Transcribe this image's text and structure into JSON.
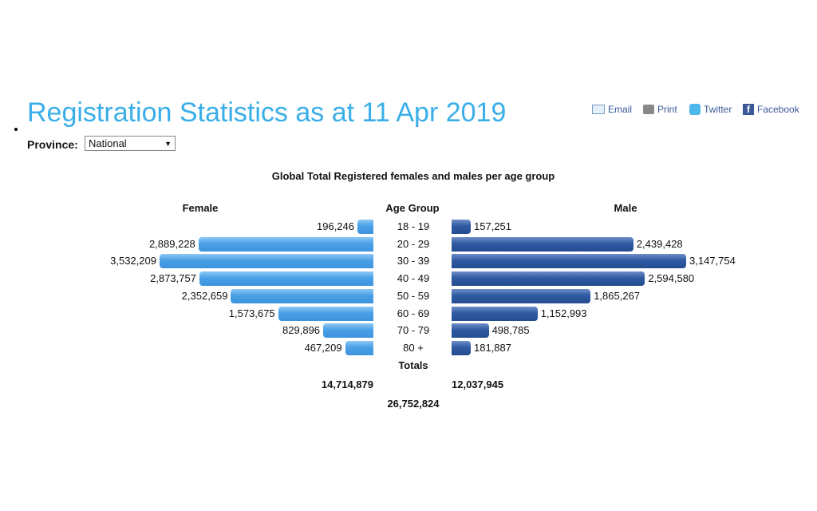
{
  "header": {
    "title": "Registration Statistics as at 11 Apr 2019",
    "province_label": "Province:",
    "province_value": "National"
  },
  "share": [
    {
      "label": "Email",
      "icon": "email-icon"
    },
    {
      "label": "Print",
      "icon": "print-icon"
    },
    {
      "label": "Twitter",
      "icon": "twitter-icon"
    },
    {
      "label": "Facebook",
      "icon": "facebook-icon"
    }
  ],
  "colors": {
    "title": "#3aaee8",
    "female": "#4aa0e6",
    "male": "#2f5aa2"
  },
  "chart_data": {
    "type": "bar",
    "title": "Global Total Registered females and males per age group",
    "left_header": "Female",
    "center_header": "Age Group",
    "right_header": "Male",
    "categories": [
      "18 - 19",
      "20 - 29",
      "30 - 39",
      "40 - 49",
      "50 - 59",
      "60 - 69",
      "70 - 79",
      "80 +"
    ],
    "series": [
      {
        "name": "Female",
        "values": [
          196246,
          2889228,
          3532209,
          2873757,
          2352659,
          1573675,
          829896,
          467209
        ],
        "labels": [
          "196,246",
          "2,889,228",
          "3,532,209",
          "2,873,757",
          "2,352,659",
          "1,573,675",
          "829,896",
          "467,209"
        ]
      },
      {
        "name": "Male",
        "values": [
          157251,
          2439428,
          3147754,
          2594580,
          1865267,
          1152993,
          498785,
          181887
        ],
        "labels": [
          "157,251",
          "2,439,428",
          "3,147,754",
          "2,594,580",
          "1,865,267",
          "1,152,993",
          "498,785",
          "181,887"
        ]
      }
    ],
    "totals_label": "Totals",
    "female_total": "14,714,879",
    "male_total": "12,037,945",
    "grand_total": "26,752,824"
  }
}
